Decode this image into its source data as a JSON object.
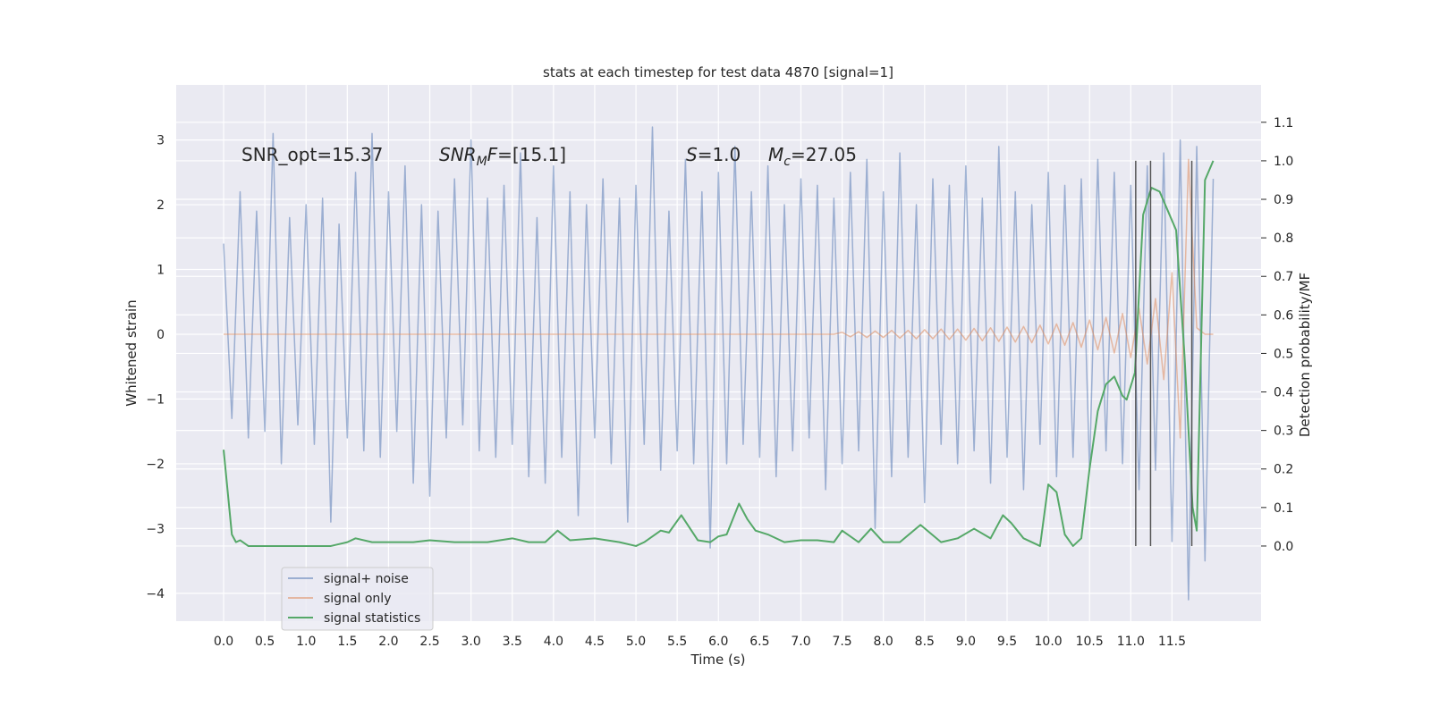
{
  "chart_data": {
    "type": "line",
    "title": "stats at each timestep for test data 4870 [signal=1]",
    "xlabel": "Time (s)",
    "ylabel": "Whitened strain",
    "y2label": "Detection probability/MF",
    "xlim": [
      -0.575,
      12.58
    ],
    "ylim": [
      -4.43,
      3.85
    ],
    "y2lim": [
      -0.195,
      1.197
    ],
    "xticks": [
      {
        "value": 0,
        "label": "0.0"
      },
      0.5,
      {
        "value": 1,
        "label": "1.0"
      },
      1.5,
      {
        "value": 2,
        "label": "2.0"
      },
      2.5,
      {
        "value": 3,
        "label": "3.0"
      },
      3.5,
      {
        "value": 4,
        "label": "4.0"
      },
      4.5,
      {
        "value": 5,
        "label": "5.0"
      },
      5.5,
      {
        "value": 6,
        "label": "6.0"
      },
      6.5,
      {
        "value": 7,
        "label": "7.0"
      },
      7.5,
      {
        "value": 8,
        "label": "8.0"
      },
      8.5,
      {
        "value": 9,
        "label": "9.0"
      },
      9.5,
      {
        "value": 10,
        "label": "10.0"
      },
      10.5,
      {
        "value": 11,
        "label": "11.0"
      },
      11.5
    ],
    "yticks": [
      {
        "value": -4,
        "label": "−4"
      },
      {
        "value": -3,
        "label": "−3"
      },
      {
        "value": -2,
        "label": "−2"
      },
      {
        "value": -1,
        "label": "−1"
      },
      0,
      1,
      2,
      3
    ],
    "y2ticks": [
      {
        "value": 0,
        "label": "0.0"
      },
      0.1,
      0.2,
      0.3,
      0.4,
      0.5,
      0.6,
      0.7,
      0.8,
      0.9,
      {
        "value": 1,
        "label": "1.0"
      },
      1.1
    ],
    "grid": true,
    "legend": "lower left",
    "x": [
      0.0,
      0.1,
      0.2,
      0.3,
      0.4,
      0.5,
      0.6,
      0.7,
      0.8,
      0.9,
      1.0,
      1.1,
      1.2,
      1.3,
      1.4,
      1.5,
      1.6,
      1.7,
      1.8,
      1.9,
      2.0,
      2.1,
      2.2,
      2.3,
      2.4,
      2.5,
      2.6,
      2.7,
      2.8,
      2.9,
      3.0,
      3.1,
      3.2,
      3.3,
      3.4,
      3.5,
      3.6,
      3.7,
      3.8,
      3.9,
      4.0,
      4.1,
      4.2,
      4.3,
      4.4,
      4.5,
      4.6,
      4.7,
      4.8,
      4.9,
      5.0,
      5.1,
      5.2,
      5.3,
      5.4,
      5.5,
      5.6,
      5.7,
      5.8,
      5.9,
      6.0,
      6.1,
      6.2,
      6.3,
      6.4,
      6.5,
      6.6,
      6.7,
      6.8,
      6.9,
      7.0,
      7.1,
      7.2,
      7.3,
      7.4,
      7.5,
      7.6,
      7.7,
      7.8,
      7.9,
      8.0,
      8.1,
      8.2,
      8.3,
      8.4,
      8.5,
      8.6,
      8.7,
      8.8,
      8.9,
      9.0,
      9.1,
      9.2,
      9.3,
      9.4,
      9.5,
      9.6,
      9.7,
      9.8,
      9.9,
      10.0,
      10.1,
      10.2,
      10.3,
      10.4,
      10.5,
      10.6,
      10.7,
      10.8,
      10.9,
      11.0,
      11.1,
      11.2,
      11.3,
      11.4,
      11.5,
      11.6,
      11.7,
      11.8,
      11.9,
      12.0
    ],
    "series": [
      {
        "name": "signal+ noise",
        "color": "#4c72b0",
        "opacity": 0.5,
        "values": [
          1.4,
          -1.3,
          2.2,
          -1.6,
          1.9,
          -1.5,
          3.1,
          -2.0,
          1.8,
          -1.4,
          2.0,
          -1.7,
          2.1,
          -2.9,
          1.7,
          -1.6,
          2.5,
          -1.8,
          3.1,
          -1.9,
          2.2,
          -1.5,
          2.6,
          -2.3,
          2.0,
          -2.5,
          1.9,
          -1.6,
          2.4,
          -1.4,
          3.0,
          -1.8,
          2.1,
          -1.9,
          2.3,
          -1.7,
          2.8,
          -2.2,
          1.8,
          -2.3,
          2.6,
          -1.9,
          2.2,
          -2.8,
          2.0,
          -1.6,
          2.4,
          -2.0,
          2.1,
          -2.9,
          2.3,
          -1.7,
          3.2,
          -2.1,
          1.9,
          -1.8,
          2.7,
          -2.0,
          2.2,
          -3.3,
          2.5,
          -2.0,
          2.9,
          -1.7,
          2.2,
          -1.9,
          2.6,
          -2.2,
          2.0,
          -1.8,
          2.4,
          -1.6,
          2.3,
          -2.4,
          2.1,
          -2.0,
          2.5,
          -1.8,
          2.7,
          -3.0,
          2.2,
          -2.2,
          2.8,
          -1.9,
          2.0,
          -2.6,
          2.4,
          -1.7,
          2.3,
          -2.0,
          2.6,
          -1.8,
          2.1,
          -2.3,
          2.9,
          -1.9,
          2.2,
          -2.4,
          2.0,
          -1.7,
          2.5,
          -2.2,
          2.3,
          -1.9,
          2.4,
          -2.1,
          2.7,
          -1.8,
          2.5,
          -2.0,
          2.3,
          -2.4,
          2.6,
          -2.1,
          2.8,
          -3.2,
          3.0,
          -4.1,
          2.9,
          -3.5,
          2.4
        ]
      },
      {
        "name": "signal only",
        "color": "#dd8452",
        "opacity": 0.5,
        "values": [
          0,
          0,
          0,
          0,
          0,
          0,
          0,
          0,
          0,
          0,
          0,
          0,
          0,
          0,
          0,
          0,
          0,
          0,
          0,
          0,
          0,
          0,
          0,
          0,
          0,
          0,
          0,
          0,
          0,
          0,
          0,
          0,
          0,
          0,
          0,
          0,
          0,
          0,
          0,
          0,
          0,
          0,
          0,
          0,
          0,
          0,
          0,
          0,
          0,
          0,
          0,
          0,
          0,
          0,
          0,
          0,
          0,
          0,
          0,
          0,
          0,
          0,
          0,
          0,
          0,
          0,
          0,
          0,
          0,
          0,
          0,
          0,
          0,
          0,
          0,
          0.03,
          -0.04,
          0.04,
          -0.05,
          0.05,
          -0.05,
          0.06,
          -0.06,
          0.06,
          -0.07,
          0.07,
          -0.07,
          0.08,
          -0.08,
          0.08,
          -0.09,
          0.09,
          -0.1,
          0.1,
          -0.11,
          0.11,
          -0.12,
          0.12,
          -0.13,
          0.14,
          -0.15,
          0.16,
          -0.17,
          0.18,
          -0.2,
          0.22,
          -0.24,
          0.26,
          -0.29,
          0.32,
          -0.36,
          0.4,
          -0.46,
          0.55,
          -0.7,
          0.95,
          -1.6,
          2.7,
          0.1,
          0,
          0
        ]
      },
      {
        "name": "signal statistics",
        "color": "#55a868",
        "opacity": 1,
        "axis": "y2",
        "x": [
          0.0,
          0.1,
          0.15,
          0.2,
          0.3,
          0.4,
          0.5,
          0.8,
          1.0,
          1.3,
          1.5,
          1.6,
          1.8,
          2.0,
          2.3,
          2.5,
          2.8,
          3.0,
          3.2,
          3.5,
          3.7,
          3.9,
          4.05,
          4.2,
          4.5,
          4.8,
          5.0,
          5.1,
          5.3,
          5.4,
          5.55,
          5.75,
          5.9,
          6.0,
          6.1,
          6.25,
          6.35,
          6.45,
          6.6,
          6.8,
          7.0,
          7.2,
          7.4,
          7.5,
          7.7,
          7.85,
          8.0,
          8.2,
          8.45,
          8.7,
          8.9,
          9.1,
          9.3,
          9.45,
          9.55,
          9.7,
          9.9,
          10.0,
          10.1,
          10.2,
          10.3,
          10.4,
          10.5,
          10.6,
          10.7,
          10.8,
          10.9,
          10.95,
          11.05,
          11.15,
          11.25,
          11.35,
          11.45,
          11.55,
          11.65,
          11.75,
          11.8,
          11.9,
          12.0
        ],
        "values": [
          0.25,
          0.03,
          0.01,
          0.015,
          0.0,
          0.0,
          0.0,
          0.0,
          0.0,
          0.0,
          0.01,
          0.02,
          0.01,
          0.01,
          0.01,
          0.015,
          0.01,
          0.01,
          0.01,
          0.02,
          0.01,
          0.01,
          0.04,
          0.015,
          0.02,
          0.01,
          0.0,
          0.01,
          0.04,
          0.035,
          0.08,
          0.015,
          0.01,
          0.025,
          0.03,
          0.11,
          0.07,
          0.04,
          0.03,
          0.01,
          0.015,
          0.015,
          0.01,
          0.04,
          0.01,
          0.045,
          0.01,
          0.01,
          0.055,
          0.01,
          0.02,
          0.045,
          0.02,
          0.08,
          0.06,
          0.02,
          0.0,
          0.16,
          0.14,
          0.03,
          0.0,
          0.02,
          0.2,
          0.35,
          0.42,
          0.44,
          0.39,
          0.38,
          0.45,
          0.86,
          0.93,
          0.92,
          0.87,
          0.82,
          0.5,
          0.1,
          0.04,
          0.95,
          1.0
        ]
      }
    ],
    "vlines": [
      11.06,
      11.24,
      11.74
    ],
    "vline_span": [
      0,
      1
    ],
    "vline_color": "#555555",
    "annotations": [
      {
        "parts": [
          {
            "text": "SNR_opt=15.37"
          }
        ]
      },
      {
        "parts": [
          {
            "text": "SNR",
            "italic": true
          },
          {
            "text": "M",
            "italic": true,
            "sub": true
          },
          {
            "text": "F",
            "italic": true
          },
          {
            "text": "=[15.1]"
          }
        ]
      },
      {
        "parts": [
          {
            "text": "S",
            "italic": true
          },
          {
            "text": "=1.0"
          }
        ]
      },
      {
        "parts": [
          {
            "text": "M",
            "italic": true
          },
          {
            "text": "c",
            "italic": true,
            "sub": true
          },
          {
            "text": "=27.05"
          }
        ]
      }
    ]
  }
}
